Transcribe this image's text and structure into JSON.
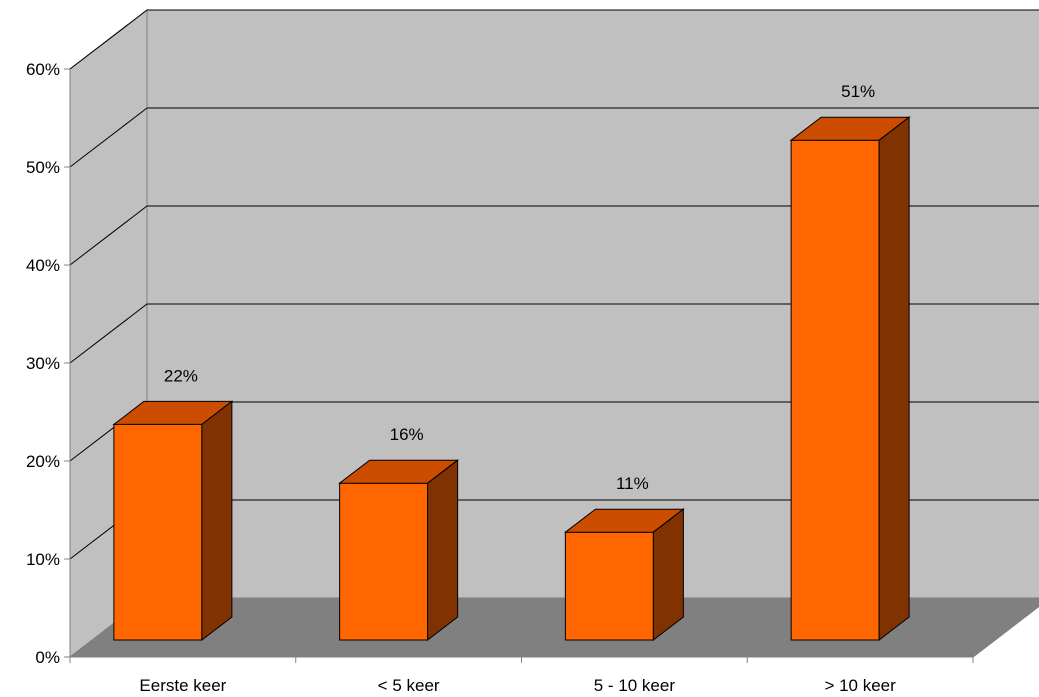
{
  "chart_data": {
    "type": "bar",
    "style": "3d-column",
    "title": "",
    "xlabel": "",
    "ylabel": "",
    "categories": [
      "Eerste keer",
      "< 5 keer",
      "5 - 10 keer",
      "> 10 keer"
    ],
    "values": [
      22,
      16,
      11,
      51
    ],
    "data_labels": [
      "22%",
      "16%",
      "11%",
      "51%"
    ],
    "ylim": [
      0,
      60
    ],
    "yticks": [
      0,
      10,
      20,
      30,
      40,
      50,
      60
    ],
    "ytick_labels": [
      "0%",
      "10%",
      "20%",
      "30%",
      "40%",
      "50%",
      "60%"
    ],
    "grid": true,
    "legend": "none",
    "colors": {
      "bar_front": "#FF6600",
      "bar_top": "#CC4C00",
      "bar_side": "#803300",
      "back_wall": "#C0C0C0",
      "side_wall": "#C0C0C0",
      "floor": "#808080",
      "outline": "#000000"
    }
  }
}
